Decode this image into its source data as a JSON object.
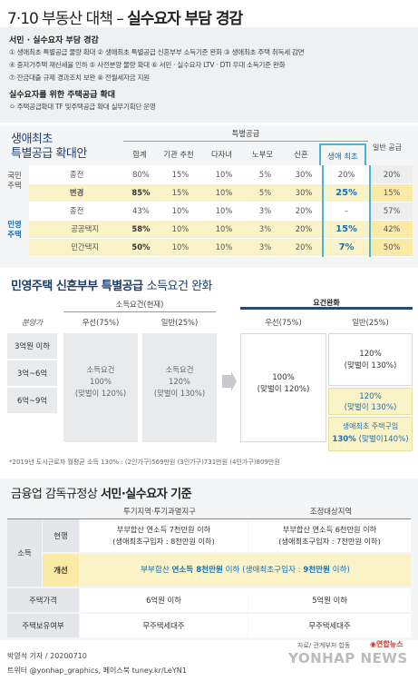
{
  "title_prefix": "7·10 부동산 대책 – ",
  "title_main": "실수요자 부담 경감",
  "top": {
    "h1": "서민 · 실수요자 부담 경감",
    "l1": "① 생애최초 특별공급 물량 확대  ② 생애최초 특별공급 신혼부부 소득기준 완화 ③ 생애최초 주택 취득세 감면",
    "l2": "④ 중저가주택 재산세율 인하 ⑤ 사전분양 물량 확대 ⑥ 서민 · 실수요자 LTV · DTI 우대 소득기준 완화",
    "l3": "⑦ 잔금대출 규제 경과조치 보완 ⑧ 전월세자금 지원",
    "h2": "실수요자를 위한 주택공급 확대",
    "l4": "ㅇ 주택공급확대 TF 및주택공급 확대 실무기획단 운영"
  },
  "s1": {
    "title1": "생애최초",
    "title2": "특별공급 확대안",
    "group": "특별공급",
    "cols": [
      "합계",
      "기관 추천",
      "다자녀",
      "노부모",
      "신혼",
      "생애 최초",
      "일반 공급"
    ],
    "national": "국민 주택",
    "private": "민영 주택",
    "rows": [
      {
        "label": "종전",
        "vals": [
          "80%",
          "15%",
          "10%",
          "5%",
          "30%",
          "20%",
          "20%"
        ]
      },
      {
        "label": "변경",
        "vals": [
          "85%",
          "15%",
          "10%",
          "5%",
          "30%",
          "25%",
          "15%"
        ]
      },
      {
        "label": "종전",
        "vals": [
          "43%",
          "10%",
          "10%",
          "3%",
          "20%",
          "–",
          "57%"
        ]
      },
      {
        "label": "공공택지",
        "vals": [
          "58%",
          "10%",
          "10%",
          "3%",
          "20%",
          "15%",
          "42%"
        ]
      },
      {
        "label": "민간택지",
        "vals": [
          "50%",
          "10%",
          "10%",
          "3%",
          "20%",
          "7%",
          "50%"
        ]
      }
    ],
    "change": "변경"
  },
  "s2": {
    "title_prefix": "민영주택 신혼부부 특별공급 ",
    "title_suffix": "소득요건 완화",
    "current": "소득요건(현재)",
    "relaxed": "요건완화",
    "price": "분양가",
    "priority": "우선(75%)",
    "general": "일반(25%)",
    "rows": [
      "3억원 이하",
      "3억~6억",
      "6억~9억"
    ],
    "cur_pri": "소득요건\n100%\n(맞벌이 120%)",
    "cur_gen": "소득요건\n120%\n(맞벌이 130%)",
    "new_pri": "100%\n(맞벌이 120%)",
    "new_gen1": "120%\n(맞벌이 130%)",
    "new_gen2": "120%\n(맞벌이 130%)",
    "new_gen3a": "생애최초 주택구입",
    "new_gen3b": "130%",
    "new_gen3c": " (맞벌이140%)",
    "note": "*2019년 도시근로자 월평균 소득 130% : (2인가구)569만원 (3인가구)731만원 (4인가구)809만원"
  },
  "s3": {
    "title_prefix": "금융업 감독규정상 ",
    "title_main": "서민·실수요자 기준",
    "col1": "투기지역·투기과열지구",
    "col2": "조정대상지역",
    "income": "소득",
    "current": "현행",
    "improve": "개선",
    "cur1a": "부부합산 연소득 7천만원 이하",
    "cur1b": "(생애최초구입자 : 8천만원 이하)",
    "cur2a": "부부합산 연소득 6천만원 이하",
    "cur2b": "(생애최초구입자 : 7천만원 이하)",
    "imp_a": "부부합산 ",
    "imp_b": "연소득 8천만원",
    "imp_c": " 이하 (생애최초구입자 : ",
    "imp_d": "9천만원",
    "imp_e": " 이하)",
    "price": "주택가격",
    "price1": "6억원 이하",
    "price2": "5억원 이하",
    "owner": "주택보유여부",
    "owner1": "무주택세대주",
    "owner2": "무주택세대주"
  },
  "footer": {
    "reporter": "박영석 기자 / 20200710",
    "twitter": "트위터 @yonhap_graphics, 페이스북 tuney.kr/LeYN1",
    "source": "자료/ 관계부처 합동",
    "brand_kr": "연합뉴스",
    "brand_en": "YONHAP NEWS"
  },
  "colors": {
    "accent": "#264a78",
    "highlight": "#4cb3d8",
    "cyan": "#1b6fae",
    "red": "#c0392b",
    "yellow": "#fbf3c8"
  }
}
